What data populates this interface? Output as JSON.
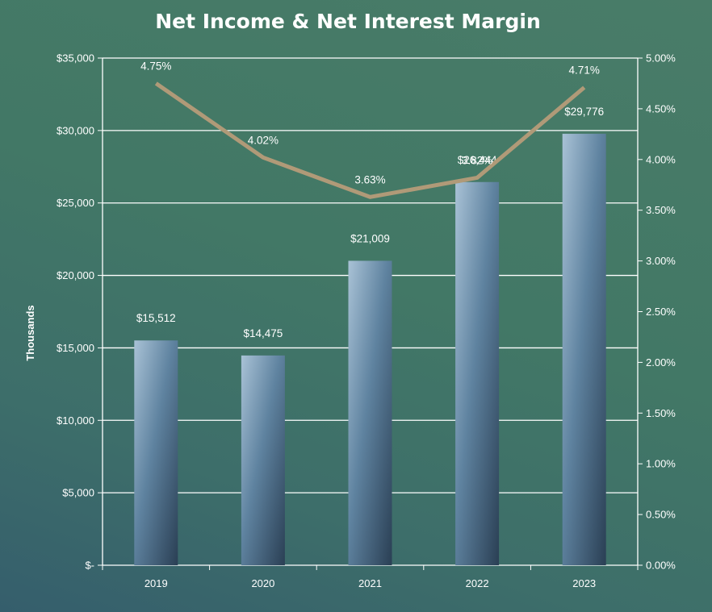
{
  "chart_data": {
    "type": "bar+line",
    "title": "Net Income & Net Interest Margin",
    "categories": [
      "2019",
      "2020",
      "2021",
      "2022",
      "2023"
    ],
    "series": [
      {
        "type": "bar",
        "axis": "left",
        "values": [
          15512,
          14475,
          21009,
          26444,
          29776
        ],
        "labels": [
          "$15,512",
          "$14,475",
          "$21,009",
          "$26,444",
          "$29,776"
        ]
      },
      {
        "type": "line",
        "axis": "right",
        "color": "#b09a78",
        "values": [
          4.75,
          4.02,
          3.63,
          3.82,
          4.71
        ],
        "labels": [
          "4.75%",
          "4.02%",
          "3.63%",
          "3.82%",
          "4.71%"
        ]
      }
    ],
    "ylabel": "Thousands",
    "ylim": [
      0,
      35000
    ],
    "y_ticks": [
      "$-",
      "$5,000",
      "$10,000",
      "$15,000",
      "$20,000",
      "$25,000",
      "$30,000",
      "$35,000"
    ],
    "y2lim": [
      0,
      5
    ],
    "y2_ticks": [
      "0.00%",
      "0.50%",
      "1.00%",
      "1.50%",
      "2.00%",
      "2.50%",
      "3.00%",
      "3.50%",
      "4.00%",
      "4.50%",
      "5.00%"
    ],
    "grid": true,
    "legend": "none",
    "colors": {
      "bar_light": "#a6bfd3",
      "bar_mid": "#5c7f9a",
      "bar_dark": "#2c4257",
      "line": "#b09a78",
      "axis": "#ffffff"
    }
  }
}
